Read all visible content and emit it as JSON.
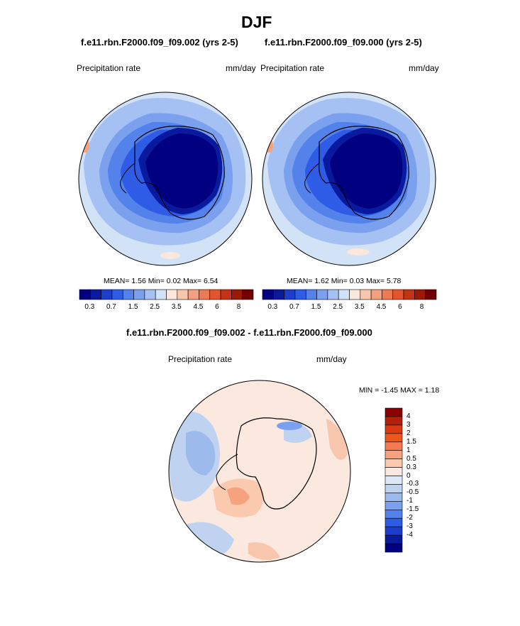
{
  "season": "DJF",
  "left_panel": {
    "case_title": "f.e11.rbn.F2000.f09_f09.002 (yrs 2-5)",
    "variable": "Precipitation rate",
    "units": "mm/day",
    "stats": "MEAN=   1.56  Min=   0.02  Max=   6.54"
  },
  "right_panel": {
    "case_title": "f.e11.rbn.F2000.f09_f09.000 (yrs 2-5)",
    "variable": "Precipitation rate",
    "units": "mm/day",
    "stats": "MEAN=   1.62  Min=   0.03  Max=   5.78"
  },
  "diff_panel": {
    "case_title": "f.e11.rbn.F2000.f09_f09.002 - f.e11.rbn.F2000.f09_f09.000",
    "variable": "Precipitation rate",
    "units": "mm/day",
    "stats": "MIN =  -1.45 MAX =   1.18"
  },
  "abs_colorbar": {
    "colors": [
      "#000080",
      "#0a1a9e",
      "#1b3fcc",
      "#2f5ce6",
      "#5282ea",
      "#7aa0ee",
      "#a5c1f3",
      "#d2e2f7",
      "#fbe7dc",
      "#f7c6ad",
      "#f3a07f",
      "#ee7955",
      "#e5542e",
      "#c33416",
      "#9b1a06",
      "#730000"
    ],
    "labels": [
      "0.3",
      "0.7",
      "1.5",
      "2.5",
      "3.5",
      "4.5",
      "6",
      "8"
    ]
  },
  "diff_colorbar": {
    "colors": [
      "#8b0000",
      "#b3200a",
      "#d93a12",
      "#f0551d",
      "#f47b4f",
      "#f7a27e",
      "#fbcaae",
      "#fbe9df",
      "#dde8f6",
      "#bfd3f1",
      "#9dbaed",
      "#7aa0ee",
      "#5282ea",
      "#2f5ce6",
      "#1b3fcc",
      "#0a1a9e",
      "#000080"
    ],
    "labels": [
      "4",
      "3",
      "2",
      "1.5",
      "1",
      "0.5",
      "0.3",
      "0",
      "-0.3",
      "-0.5",
      "-1",
      "-1.5",
      "-2",
      "-3",
      "-4"
    ]
  }
}
